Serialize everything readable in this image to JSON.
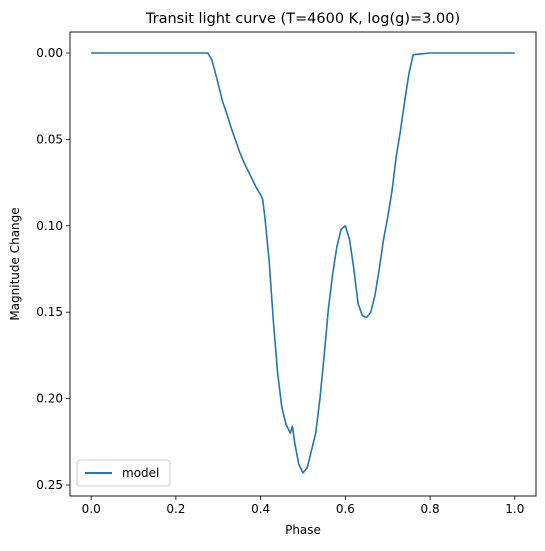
{
  "chart_data": {
    "type": "line",
    "title": "Transit light curve (T=4600 K, log(g)=3.00)",
    "xlabel": "Phase",
    "ylabel": "Magnitude Change",
    "xlim": [
      -0.05,
      1.05
    ],
    "ylim": [
      0.0,
      0.25
    ],
    "y_inverted": true,
    "grid": false,
    "legend_position": "lower-left",
    "x_ticks": [
      0.0,
      0.2,
      0.4,
      0.6,
      0.8,
      1.0
    ],
    "x_tick_labels": [
      "0.0",
      "0.2",
      "0.4",
      "0.6",
      "0.8",
      "1.0"
    ],
    "y_ticks": [
      0.0,
      0.05,
      0.1,
      0.15,
      0.2,
      0.25
    ],
    "y_tick_labels": [
      "0.00",
      "0.05",
      "0.10",
      "0.15",
      "0.20",
      "0.25"
    ],
    "series": [
      {
        "name": "model",
        "color": "#1f77b4",
        "x": [
          0.0,
          0.05,
          0.1,
          0.15,
          0.2,
          0.25,
          0.265,
          0.275,
          0.285,
          0.3,
          0.31,
          0.32,
          0.33,
          0.34,
          0.35,
          0.36,
          0.37,
          0.38,
          0.39,
          0.4,
          0.405,
          0.41,
          0.42,
          0.43,
          0.44,
          0.45,
          0.46,
          0.47,
          0.475,
          0.48,
          0.49,
          0.5,
          0.51,
          0.52,
          0.53,
          0.54,
          0.55,
          0.56,
          0.57,
          0.58,
          0.59,
          0.6,
          0.61,
          0.62,
          0.63,
          0.64,
          0.65,
          0.66,
          0.67,
          0.68,
          0.69,
          0.7,
          0.71,
          0.72,
          0.73,
          0.74,
          0.75,
          0.76,
          0.8,
          0.85,
          0.9,
          0.95,
          1.0
        ],
        "y": [
          0.0,
          0.0,
          0.0,
          0.0,
          0.0,
          0.0,
          0.0,
          0.0,
          0.004,
          0.018,
          0.028,
          0.035,
          0.043,
          0.05,
          0.057,
          0.063,
          0.068,
          0.073,
          0.078,
          0.082,
          0.085,
          0.095,
          0.12,
          0.155,
          0.185,
          0.205,
          0.215,
          0.22,
          0.216,
          0.225,
          0.238,
          0.243,
          0.24,
          0.23,
          0.22,
          0.2,
          0.175,
          0.148,
          0.128,
          0.112,
          0.102,
          0.1,
          0.108,
          0.125,
          0.145,
          0.152,
          0.153,
          0.15,
          0.14,
          0.125,
          0.108,
          0.095,
          0.08,
          0.06,
          0.045,
          0.028,
          0.012,
          0.001,
          0.0,
          0.0,
          0.0,
          0.0,
          0.0
        ]
      }
    ]
  }
}
